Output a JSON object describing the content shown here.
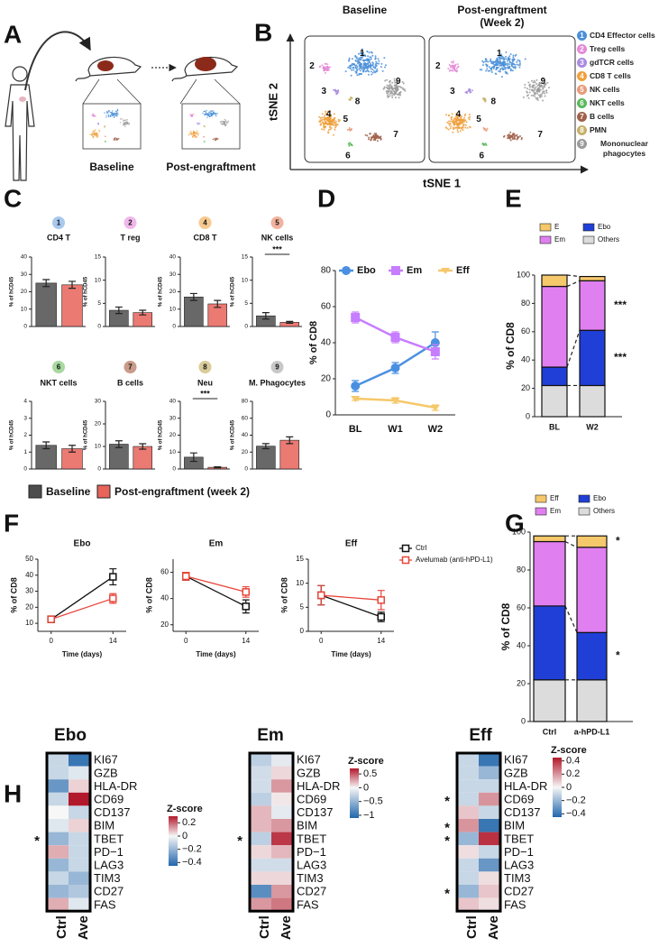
{
  "panel_labels": [
    "A",
    "B",
    "C",
    "D",
    "E",
    "F",
    "G",
    "H"
  ],
  "panel_a": {
    "labels": [
      "Baseline",
      "Post-engraftment"
    ]
  },
  "panel_b": {
    "axis_x": "tSNE 1",
    "axis_y": "tSNE 2",
    "plots": [
      {
        "title_lines": [
          "Baseline"
        ]
      },
      {
        "title_lines": [
          "Post-engraftment",
          "(Week 2)"
        ]
      }
    ],
    "clusters": [
      {
        "number": 1,
        "name": "CD4 Effector cells",
        "color": "#4a8fd8"
      },
      {
        "number": 2,
        "name": "Treg cells",
        "color": "#e48ad8"
      },
      {
        "number": 3,
        "name": "gdTCR cells",
        "color": "#a88be0"
      },
      {
        "number": 4,
        "name": "CD8 T cells",
        "color": "#f0a03c"
      },
      {
        "number": 5,
        "name": "NK cells",
        "color": "#e89a7a"
      },
      {
        "number": 6,
        "name": "NKT cells",
        "color": "#5bb85b"
      },
      {
        "number": 7,
        "name": "B cells",
        "color": "#a0604a"
      },
      {
        "number": 8,
        "name": "PMN",
        "color": "#c8b06a"
      },
      {
        "number": 9,
        "name": "Mononuclear phagocytes",
        "color": "#9a9a9a"
      }
    ]
  },
  "chart_data": [
    {
      "type": "bar",
      "badge": 1,
      "badge_color": "#a9c8ee",
      "title": "CD4 T",
      "y_label": "% of hCD45",
      "ylim": [
        0,
        40
      ],
      "yticks": [
        0,
        10,
        20,
        30,
        40
      ],
      "legend": "bottom",
      "series": [
        {
          "name": "Baseline",
          "color": "#4d4d4d",
          "values": [
            25
          ],
          "errors": [
            2
          ]
        },
        {
          "name": "Post-engraftment (week 2)",
          "color": "#e8635a",
          "values": [
            24
          ],
          "errors": [
            2
          ]
        }
      ]
    },
    {
      "type": "bar",
      "badge": 2,
      "badge_color": "#f0b8ea",
      "title": "T reg",
      "y_label": "% of hCD45",
      "ylim": [
        0,
        15
      ],
      "yticks": [
        0,
        5,
        10,
        15
      ],
      "series": [
        {
          "name": "Baseline",
          "color": "#4d4d4d",
          "values": [
            3.5
          ],
          "errors": [
            0.7
          ]
        },
        {
          "name": "Post-engraftment (week 2)",
          "color": "#e8635a",
          "values": [
            3
          ],
          "errors": [
            0.5
          ]
        }
      ]
    },
    {
      "type": "bar",
      "badge": 4,
      "badge_color": "#f5c98f",
      "title": "CD8 T",
      "y_label": "% of hCD45",
      "ylim": [
        0,
        40
      ],
      "yticks": [
        0,
        10,
        20,
        30,
        40
      ],
      "series": [
        {
          "name": "Baseline",
          "color": "#4d4d4d",
          "values": [
            17
          ],
          "errors": [
            2
          ]
        },
        {
          "name": "Post-engraftment (week 2)",
          "color": "#e8635a",
          "values": [
            13
          ],
          "errors": [
            2
          ]
        }
      ]
    },
    {
      "type": "bar",
      "badge": 5,
      "badge_color": "#f2b39e",
      "title": "NK cells",
      "y_label": "% of hCD45",
      "ylim": [
        0,
        15
      ],
      "yticks": [
        0,
        5,
        10,
        15
      ],
      "annotation": "***",
      "series": [
        {
          "name": "Baseline",
          "color": "#4d4d4d",
          "values": [
            2.3
          ],
          "errors": [
            0.7
          ]
        },
        {
          "name": "Post-engraftment (week 2)",
          "color": "#e8635a",
          "values": [
            0.9
          ],
          "errors": [
            0.2
          ]
        }
      ]
    },
    {
      "type": "bar",
      "badge": 6,
      "badge_color": "#a8d8a0",
      "title": "NKT cells",
      "y_label": "% of hCD45",
      "ylim": [
        0,
        4
      ],
      "yticks": [
        0,
        1,
        2,
        3,
        4
      ],
      "series": [
        {
          "name": "Baseline",
          "color": "#4d4d4d",
          "values": [
            1.4
          ],
          "errors": [
            0.2
          ]
        },
        {
          "name": "Post-engraftment (week 2)",
          "color": "#e8635a",
          "values": [
            1.2
          ],
          "errors": [
            0.2
          ]
        }
      ]
    },
    {
      "type": "bar",
      "badge": 7,
      "badge_color": "#c99b8a",
      "title": "B cells",
      "y_label": "% of hCD45",
      "ylim": [
        0,
        30
      ],
      "yticks": [
        0,
        10,
        20,
        30
      ],
      "series": [
        {
          "name": "Baseline",
          "color": "#4d4d4d",
          "values": [
            11
          ],
          "errors": [
            1.5
          ]
        },
        {
          "name": "Post-engraftment (week 2)",
          "color": "#e8635a",
          "values": [
            10
          ],
          "errors": [
            1.2
          ]
        }
      ]
    },
    {
      "type": "bar",
      "badge": 8,
      "badge_color": "#d9cc99",
      "title": "Neu",
      "y_label": "% of hCD45",
      "ylim": [
        0,
        40
      ],
      "yticks": [
        0,
        10,
        20,
        30,
        40
      ],
      "annotation": "***",
      "series": [
        {
          "name": "Baseline",
          "color": "#4d4d4d",
          "values": [
            7
          ],
          "errors": [
            2.5
          ]
        },
        {
          "name": "Post-engraftment (week 2)",
          "color": "#e8635a",
          "values": [
            1
          ],
          "errors": [
            0.3
          ]
        }
      ]
    },
    {
      "type": "bar",
      "badge": 9,
      "badge_color": "#c8c8c8",
      "title": "M. Phagocytes",
      "y_label": "% of hCD45",
      "ylim": [
        0,
        80
      ],
      "yticks": [
        0,
        20,
        40,
        60,
        80
      ],
      "series": [
        {
          "name": "Baseline",
          "color": "#4d4d4d",
          "values": [
            27
          ],
          "errors": [
            3
          ]
        },
        {
          "name": "Post-engraftment (week 2)",
          "color": "#e8635a",
          "values": [
            34
          ],
          "errors": [
            4
          ]
        }
      ]
    },
    {
      "type": "line",
      "y_label": "% of CD8",
      "categories": [
        "BL",
        "W1",
        "W2"
      ],
      "ylim": [
        0,
        80
      ],
      "yticks": [
        0,
        20,
        40,
        60,
        80
      ],
      "legend": "top",
      "series": [
        {
          "name": "Ebo",
          "color": "#4a90e2",
          "marker": "circle",
          "values": [
            16,
            26,
            40
          ],
          "errors": [
            3,
            3,
            6
          ]
        },
        {
          "name": "Em",
          "color": "#c77dff",
          "marker": "square",
          "values": [
            54,
            43,
            35
          ],
          "errors": [
            3,
            3,
            4
          ]
        },
        {
          "name": "Eff",
          "color": "#f5c86b",
          "marker": "triangle",
          "values": [
            9,
            8,
            4
          ],
          "errors": [
            1,
            1.5,
            1.5
          ]
        }
      ]
    },
    {
      "type": "stacked_bar",
      "y_label": "% of CD8",
      "categories": [
        "BL",
        "W2"
      ],
      "ylim": [
        0,
        100
      ],
      "yticks": [
        0,
        20,
        40,
        60,
        80,
        100
      ],
      "legend": "top",
      "series": [
        {
          "name": "Others",
          "color": "#dcdcdc",
          "values": [
            22,
            22
          ],
          "significance": [
            null,
            null
          ]
        },
        {
          "name": "Ebo",
          "color": "#1f3fd6",
          "values": [
            13,
            39
          ],
          "significance": [
            null,
            "***"
          ]
        },
        {
          "name": "Em",
          "color": "#e07ff0",
          "values": [
            57,
            35
          ],
          "significance": [
            null,
            "***"
          ]
        },
        {
          "name": "E",
          "color": "#f5c86b",
          "values": [
            8,
            3
          ],
          "significance": [
            null,
            null
          ]
        }
      ]
    },
    {
      "type": "line",
      "title": "Ebo",
      "x_label": "Time (days)",
      "y_label": "% of CD8",
      "x": [
        0,
        14
      ],
      "xlim": [
        -3,
        17
      ],
      "xticks": [
        0,
        14
      ],
      "ylim": [
        5,
        50
      ],
      "yticks": [
        10,
        20,
        30,
        40,
        50
      ],
      "series": [
        {
          "name": "Ctrl",
          "color": "#111111",
          "marker": "open-square",
          "values": [
            12.5,
            39
          ],
          "errors": [
            1,
            5
          ]
        },
        {
          "name": "Avelumab (anti-hPD-L1)",
          "color": "#e8463a",
          "marker": "open-square",
          "values": [
            12.5,
            25.5
          ],
          "errors": [
            1,
            3
          ]
        }
      ]
    },
    {
      "type": "line",
      "title": "Em",
      "x_label": "Time (days)",
      "y_label": "% of CD8",
      "x": [
        0,
        14
      ],
      "xlim": [
        -3,
        17
      ],
      "xticks": [
        0,
        14
      ],
      "ylim": [
        15,
        70
      ],
      "yticks": [
        20,
        40,
        60
      ],
      "series": [
        {
          "name": "Ctrl",
          "color": "#111111",
          "marker": "open-square",
          "values": [
            57,
            34
          ],
          "errors": [
            3,
            5
          ]
        },
        {
          "name": "Avelumab (anti-hPD-L1)",
          "color": "#e8463a",
          "marker": "open-square",
          "values": [
            57,
            45
          ],
          "errors": [
            3,
            4
          ]
        }
      ]
    },
    {
      "type": "line",
      "title": "Eff",
      "x_label": "Time (days)",
      "y_label": "% of CD8",
      "x": [
        0,
        14
      ],
      "xlim": [
        -3,
        17
      ],
      "xticks": [
        0,
        14
      ],
      "ylim": [
        0,
        15
      ],
      "yticks": [
        0,
        5,
        10,
        15
      ],
      "legend": "upper right",
      "series": [
        {
          "name": "Ctrl",
          "color": "#111111",
          "marker": "open-square",
          "values": [
            7.5,
            3
          ],
          "errors": [
            2,
            1
          ]
        },
        {
          "name": "Avelumab (anti-hPD-L1)",
          "color": "#e8463a",
          "marker": "open-square",
          "values": [
            7.5,
            6.5
          ],
          "errors": [
            2,
            2
          ]
        }
      ]
    },
    {
      "type": "stacked_bar",
      "y_label": "% of CD8",
      "categories": [
        "Ctrl",
        "a-hPD-L1"
      ],
      "ylim": [
        0,
        100
      ],
      "yticks": [
        0,
        20,
        40,
        60,
        80,
        100
      ],
      "legend": "top",
      "series": [
        {
          "name": "Others",
          "color": "#dcdcdc",
          "values": [
            22,
            22
          ],
          "significance": [
            null,
            null
          ]
        },
        {
          "name": "Ebo",
          "color": "#1f3fd6",
          "values": [
            39,
            25
          ],
          "significance": [
            null,
            "*"
          ]
        },
        {
          "name": "Em",
          "color": "#e07ff0",
          "values": [
            34,
            45
          ],
          "significance": [
            null,
            null
          ]
        },
        {
          "name": "Eff",
          "color": "#f5c86b",
          "values": [
            3,
            6
          ],
          "significance": [
            null,
            "*"
          ]
        }
      ]
    },
    {
      "type": "heatmap",
      "title": "Ebo",
      "columns": [
        "Ctrl",
        "Ave"
      ],
      "rows": [
        "KI67",
        "GZB",
        "HLA-DR",
        "CD69",
        "CD137",
        "BIM",
        "TBET",
        "PD−1",
        "LAG3",
        "TIM3",
        "CD27",
        "FAS"
      ],
      "values": [
        [
          -0.1,
          -0.4
        ],
        [
          -0.1,
          -0.05
        ],
        [
          -0.3,
          0.05
        ],
        [
          -0.1,
          0.3
        ],
        [
          0,
          -0.1
        ],
        [
          -0.05,
          0.05
        ],
        [
          -0.2,
          -0.1
        ],
        [
          0.1,
          -0.1
        ],
        [
          -0.2,
          -0.1
        ],
        [
          -0.1,
          -0.2
        ],
        [
          -0.2,
          -0.15
        ],
        [
          0.1,
          -0.05
        ]
      ],
      "row_marks": [
        null,
        null,
        null,
        null,
        null,
        null,
        "*",
        null,
        null,
        null,
        null,
        null
      ],
      "colorbar_title": "Z-score",
      "zlim": [
        -0.45,
        0.3
      ],
      "colors": [
        "#2166ac",
        "#f7f7f7",
        "#b2182b"
      ],
      "zticks": [
        0.2,
        0,
        {
          "value": -0.2,
          "label": "−0.2"
        },
        {
          "value": -0.4,
          "label": "−0.4"
        }
      ]
    },
    {
      "type": "heatmap",
      "title": "Em",
      "columns": [
        "Ctrl",
        "Ave"
      ],
      "rows": [
        "KI67",
        "GZB",
        "HLA-DR",
        "CD69",
        "CD137",
        "BIM",
        "TBET",
        "PD−1",
        "LAG3",
        "TIM3",
        "CD27",
        "FAS"
      ],
      "values": [
        [
          -0.3,
          -0.1
        ],
        [
          -0.2,
          0.1
        ],
        [
          -0.2,
          0.3
        ],
        [
          -0.3,
          0.05
        ],
        [
          0.2,
          -0.1
        ],
        [
          0.2,
          0.3
        ],
        [
          -0.3,
          0.6
        ],
        [
          0.1,
          0.2
        ],
        [
          -0.2,
          -0.2
        ],
        [
          0.1,
          0.1
        ],
        [
          -0.8,
          0.3
        ],
        [
          0.3,
          0.4
        ]
      ],
      "row_marks": [
        null,
        null,
        null,
        null,
        null,
        null,
        "*",
        null,
        null,
        null,
        null,
        null
      ],
      "colorbar_title": "Z-score",
      "zlim": [
        -1.1,
        0.7
      ],
      "colors": [
        "#2166ac",
        "#f7f7f7",
        "#b2182b"
      ],
      "zticks": [
        0.5,
        0,
        {
          "value": -0.5,
          "label": "−0.5"
        },
        {
          "value": -1,
          "label": "−1"
        }
      ]
    },
    {
      "type": "heatmap",
      "title": "Eff",
      "columns": [
        "Ctrl",
        "Ave"
      ],
      "rows": [
        "KI67",
        "GZB",
        "HLA-DR",
        "CD69",
        "CD137",
        "BIM",
        "TBET",
        "PD−1",
        "LAG3",
        "TIM3",
        "CD27",
        "FAS"
      ],
      "values": [
        [
          -0.1,
          -0.4
        ],
        [
          -0.1,
          -0.2
        ],
        [
          -0.1,
          -0.1
        ],
        [
          -0.1,
          0.2
        ],
        [
          0.1,
          -0.1
        ],
        [
          0.2,
          -0.4
        ],
        [
          -0.2,
          0.4
        ],
        [
          0.05,
          -0.1
        ],
        [
          -0.1,
          -0.3
        ],
        [
          -0.1,
          0.05
        ],
        [
          -0.2,
          0.1
        ],
        [
          0.1,
          0.05
        ]
      ],
      "row_marks": [
        null,
        null,
        null,
        "*",
        null,
        "*",
        "*",
        null,
        null,
        null,
        "*",
        null
      ],
      "colorbar_title": "Z-score",
      "zlim": [
        -0.45,
        0.45
      ],
      "colors": [
        "#2166ac",
        "#f7f7f7",
        "#b2182b"
      ],
      "zticks": [
        0.4,
        0.2,
        0,
        {
          "value": -0.2,
          "label": "−0.2"
        },
        {
          "value": -0.4,
          "label": "−0.4"
        }
      ]
    }
  ]
}
